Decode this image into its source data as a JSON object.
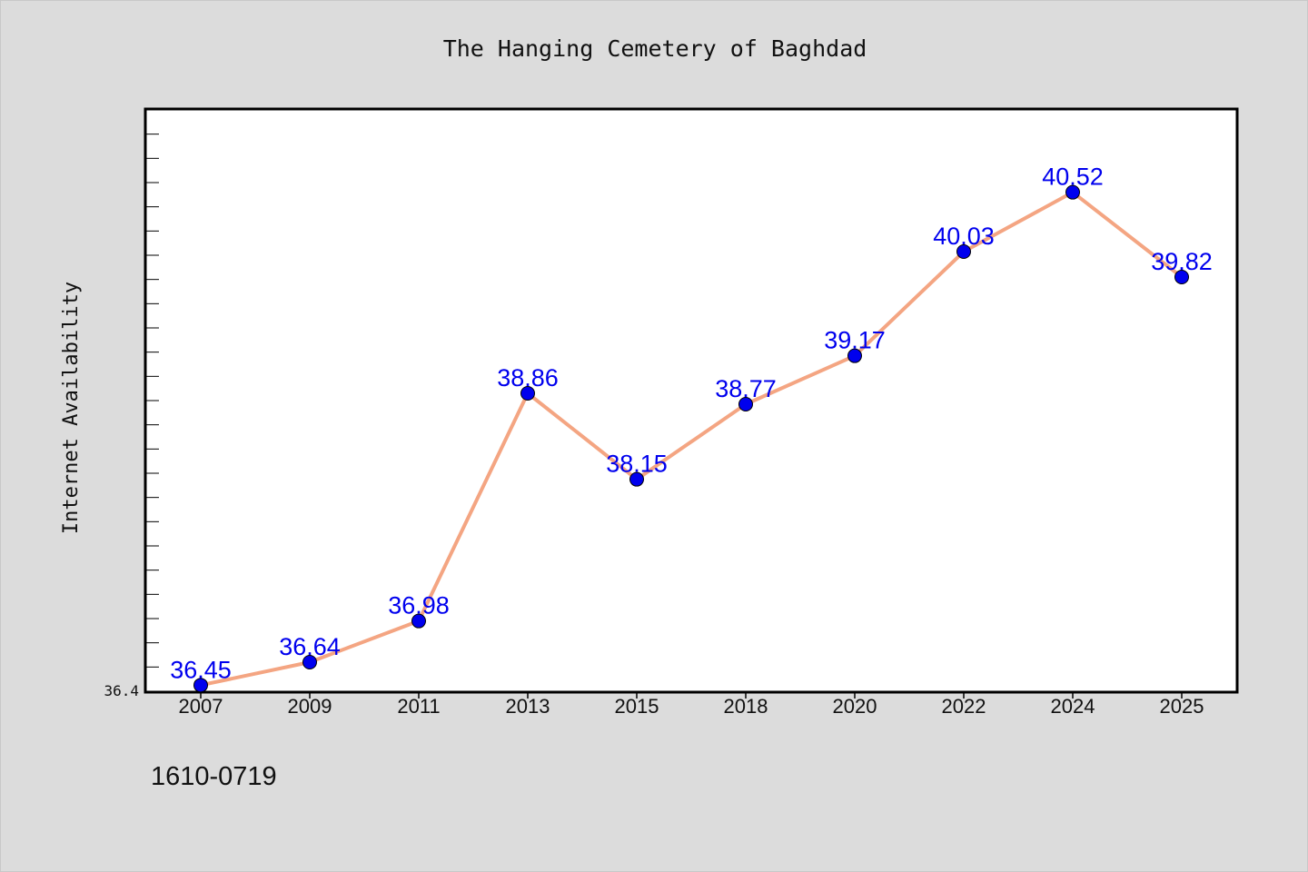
{
  "chart_data": {
    "type": "line",
    "title": "The Hanging Cemetery of Baghdad",
    "xlabel": "",
    "ylabel": "Internet Availability",
    "categories": [
      "2007",
      "2009",
      "2011",
      "2013",
      "2015",
      "2018",
      "2020",
      "2022",
      "2024",
      "2025"
    ],
    "series": [
      {
        "values": [
          36.45,
          36.64,
          36.98,
          38.86,
          38.15,
          38.77,
          39.17,
          40.03,
          40.52,
          39.82
        ],
        "data_labels": [
          "36.45",
          "36.64",
          "36.98",
          "38.86",
          "38.15",
          "38.77",
          "39.17",
          "40.03",
          "40.52",
          "39.82"
        ]
      }
    ],
    "y_tick_labels": [
      "36.4"
    ],
    "ylim": [
      36.4,
      41.2
    ],
    "grid": false,
    "legend": "none",
    "colors": {
      "line": "#f4a582",
      "marker": "#0000ee",
      "label": "#0000ee",
      "background": "#dcdcdc",
      "plot_background": "#ffffff"
    }
  },
  "footer": {
    "code": "1610-0719"
  }
}
